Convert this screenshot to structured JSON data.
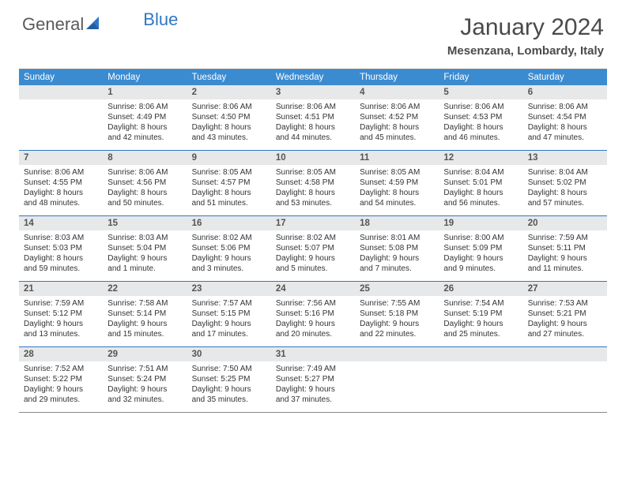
{
  "logo": {
    "part1": "General",
    "part2": "Blue"
  },
  "title": "January 2024",
  "location": "Mesenzana, Lombardy, Italy",
  "colors": {
    "header_bar": "#3b8bd0",
    "week_divider": "#2f78c4",
    "daynum_bg": "#e7e8e9",
    "logo_blue": "#2f78c4",
    "text": "#333333"
  },
  "dow": [
    "Sunday",
    "Monday",
    "Tuesday",
    "Wednesday",
    "Thursday",
    "Friday",
    "Saturday"
  ],
  "weeks": [
    [
      {
        "n": "",
        "sr": "",
        "ss": "",
        "dl": ""
      },
      {
        "n": "1",
        "sr": "Sunrise: 8:06 AM",
        "ss": "Sunset: 4:49 PM",
        "dl": "Daylight: 8 hours and 42 minutes."
      },
      {
        "n": "2",
        "sr": "Sunrise: 8:06 AM",
        "ss": "Sunset: 4:50 PM",
        "dl": "Daylight: 8 hours and 43 minutes."
      },
      {
        "n": "3",
        "sr": "Sunrise: 8:06 AM",
        "ss": "Sunset: 4:51 PM",
        "dl": "Daylight: 8 hours and 44 minutes."
      },
      {
        "n": "4",
        "sr": "Sunrise: 8:06 AM",
        "ss": "Sunset: 4:52 PM",
        "dl": "Daylight: 8 hours and 45 minutes."
      },
      {
        "n": "5",
        "sr": "Sunrise: 8:06 AM",
        "ss": "Sunset: 4:53 PM",
        "dl": "Daylight: 8 hours and 46 minutes."
      },
      {
        "n": "6",
        "sr": "Sunrise: 8:06 AM",
        "ss": "Sunset: 4:54 PM",
        "dl": "Daylight: 8 hours and 47 minutes."
      }
    ],
    [
      {
        "n": "7",
        "sr": "Sunrise: 8:06 AM",
        "ss": "Sunset: 4:55 PM",
        "dl": "Daylight: 8 hours and 48 minutes."
      },
      {
        "n": "8",
        "sr": "Sunrise: 8:06 AM",
        "ss": "Sunset: 4:56 PM",
        "dl": "Daylight: 8 hours and 50 minutes."
      },
      {
        "n": "9",
        "sr": "Sunrise: 8:05 AM",
        "ss": "Sunset: 4:57 PM",
        "dl": "Daylight: 8 hours and 51 minutes."
      },
      {
        "n": "10",
        "sr": "Sunrise: 8:05 AM",
        "ss": "Sunset: 4:58 PM",
        "dl": "Daylight: 8 hours and 53 minutes."
      },
      {
        "n": "11",
        "sr": "Sunrise: 8:05 AM",
        "ss": "Sunset: 4:59 PM",
        "dl": "Daylight: 8 hours and 54 minutes."
      },
      {
        "n": "12",
        "sr": "Sunrise: 8:04 AM",
        "ss": "Sunset: 5:01 PM",
        "dl": "Daylight: 8 hours and 56 minutes."
      },
      {
        "n": "13",
        "sr": "Sunrise: 8:04 AM",
        "ss": "Sunset: 5:02 PM",
        "dl": "Daylight: 8 hours and 57 minutes."
      }
    ],
    [
      {
        "n": "14",
        "sr": "Sunrise: 8:03 AM",
        "ss": "Sunset: 5:03 PM",
        "dl": "Daylight: 8 hours and 59 minutes."
      },
      {
        "n": "15",
        "sr": "Sunrise: 8:03 AM",
        "ss": "Sunset: 5:04 PM",
        "dl": "Daylight: 9 hours and 1 minute."
      },
      {
        "n": "16",
        "sr": "Sunrise: 8:02 AM",
        "ss": "Sunset: 5:06 PM",
        "dl": "Daylight: 9 hours and 3 minutes."
      },
      {
        "n": "17",
        "sr": "Sunrise: 8:02 AM",
        "ss": "Sunset: 5:07 PM",
        "dl": "Daylight: 9 hours and 5 minutes."
      },
      {
        "n": "18",
        "sr": "Sunrise: 8:01 AM",
        "ss": "Sunset: 5:08 PM",
        "dl": "Daylight: 9 hours and 7 minutes."
      },
      {
        "n": "19",
        "sr": "Sunrise: 8:00 AM",
        "ss": "Sunset: 5:09 PM",
        "dl": "Daylight: 9 hours and 9 minutes."
      },
      {
        "n": "20",
        "sr": "Sunrise: 7:59 AM",
        "ss": "Sunset: 5:11 PM",
        "dl": "Daylight: 9 hours and 11 minutes."
      }
    ],
    [
      {
        "n": "21",
        "sr": "Sunrise: 7:59 AM",
        "ss": "Sunset: 5:12 PM",
        "dl": "Daylight: 9 hours and 13 minutes."
      },
      {
        "n": "22",
        "sr": "Sunrise: 7:58 AM",
        "ss": "Sunset: 5:14 PM",
        "dl": "Daylight: 9 hours and 15 minutes."
      },
      {
        "n": "23",
        "sr": "Sunrise: 7:57 AM",
        "ss": "Sunset: 5:15 PM",
        "dl": "Daylight: 9 hours and 17 minutes."
      },
      {
        "n": "24",
        "sr": "Sunrise: 7:56 AM",
        "ss": "Sunset: 5:16 PM",
        "dl": "Daylight: 9 hours and 20 minutes."
      },
      {
        "n": "25",
        "sr": "Sunrise: 7:55 AM",
        "ss": "Sunset: 5:18 PM",
        "dl": "Daylight: 9 hours and 22 minutes."
      },
      {
        "n": "26",
        "sr": "Sunrise: 7:54 AM",
        "ss": "Sunset: 5:19 PM",
        "dl": "Daylight: 9 hours and 25 minutes."
      },
      {
        "n": "27",
        "sr": "Sunrise: 7:53 AM",
        "ss": "Sunset: 5:21 PM",
        "dl": "Daylight: 9 hours and 27 minutes."
      }
    ],
    [
      {
        "n": "28",
        "sr": "Sunrise: 7:52 AM",
        "ss": "Sunset: 5:22 PM",
        "dl": "Daylight: 9 hours and 29 minutes."
      },
      {
        "n": "29",
        "sr": "Sunrise: 7:51 AM",
        "ss": "Sunset: 5:24 PM",
        "dl": "Daylight: 9 hours and 32 minutes."
      },
      {
        "n": "30",
        "sr": "Sunrise: 7:50 AM",
        "ss": "Sunset: 5:25 PM",
        "dl": "Daylight: 9 hours and 35 minutes."
      },
      {
        "n": "31",
        "sr": "Sunrise: 7:49 AM",
        "ss": "Sunset: 5:27 PM",
        "dl": "Daylight: 9 hours and 37 minutes."
      },
      {
        "n": "",
        "sr": "",
        "ss": "",
        "dl": ""
      },
      {
        "n": "",
        "sr": "",
        "ss": "",
        "dl": ""
      },
      {
        "n": "",
        "sr": "",
        "ss": "",
        "dl": ""
      }
    ]
  ]
}
